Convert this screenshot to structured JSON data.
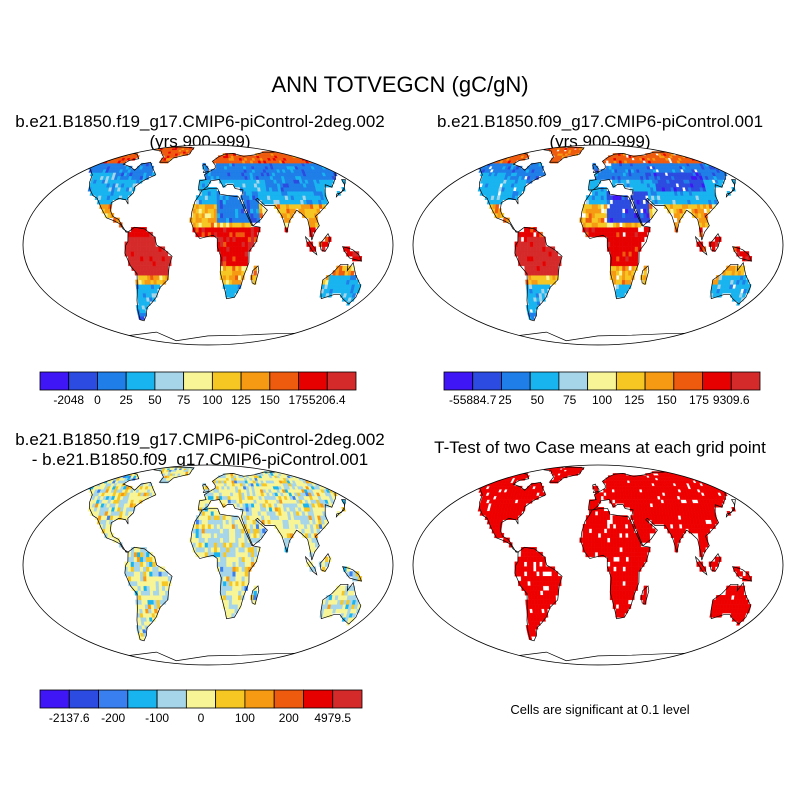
{
  "title": "ANN TOTVEGCN (gC/gN)",
  "panels": [
    {
      "id": "case1",
      "title_line1": "b.e21.B1850.f19_g17.CMIP6-piControl-2deg.002",
      "title_line2": "(yrs 900-999)",
      "colorbar": {
        "colors": [
          "#3f16f5",
          "#2c4be0",
          "#1f7ee8",
          "#18b4f0",
          "#a6d5ea",
          "#f8f596",
          "#f6c623",
          "#f59a12",
          "#ef5b0e",
          "#e60000",
          "#d52a2a"
        ],
        "labels": [
          "-2048",
          "0",
          "25",
          "50",
          "75",
          "100",
          "125",
          "150",
          "175",
          "5206.4"
        ]
      }
    },
    {
      "id": "case2",
      "title_line1": "b.e21.B1850.f09_g17.CMIP6-piControl.001",
      "title_line2": "(yrs 900-999)",
      "colorbar": {
        "colors": [
          "#3f16f5",
          "#2c4be0",
          "#1f7ee8",
          "#18b4f0",
          "#a6d5ea",
          "#f8f596",
          "#f6c623",
          "#f59a12",
          "#ef5b0e",
          "#e60000",
          "#d52a2a"
        ],
        "labels": [
          "-55884.7",
          "25",
          "50",
          "75",
          "100",
          "125",
          "150",
          "175",
          "9309.6"
        ]
      }
    },
    {
      "id": "diff",
      "title_line1": "b.e21.B1850.f19_g17.CMIP6-piControl-2deg.002",
      "title_line2": "- b.e21.B1850.f09_g17.CMIP6-piControl.001",
      "colorbar": {
        "colors": [
          "#3f16f5",
          "#2c4be0",
          "#3a7ff0",
          "#18b4f0",
          "#a6d5ea",
          "#f8f596",
          "#f6c623",
          "#f59a12",
          "#ef5b0e",
          "#e60000",
          "#d52a2a"
        ],
        "labels": [
          "-2137.6",
          "-200",
          "-100",
          "0",
          "100",
          "200",
          "4979.5"
        ]
      }
    },
    {
      "id": "ttest",
      "title_line1": "T-Test of two Case means at each grid point",
      "note": "Cells are significant at 0.1 level"
    }
  ],
  "colors": {
    "significant": "#ee0000",
    "land_outline": "#000000"
  }
}
